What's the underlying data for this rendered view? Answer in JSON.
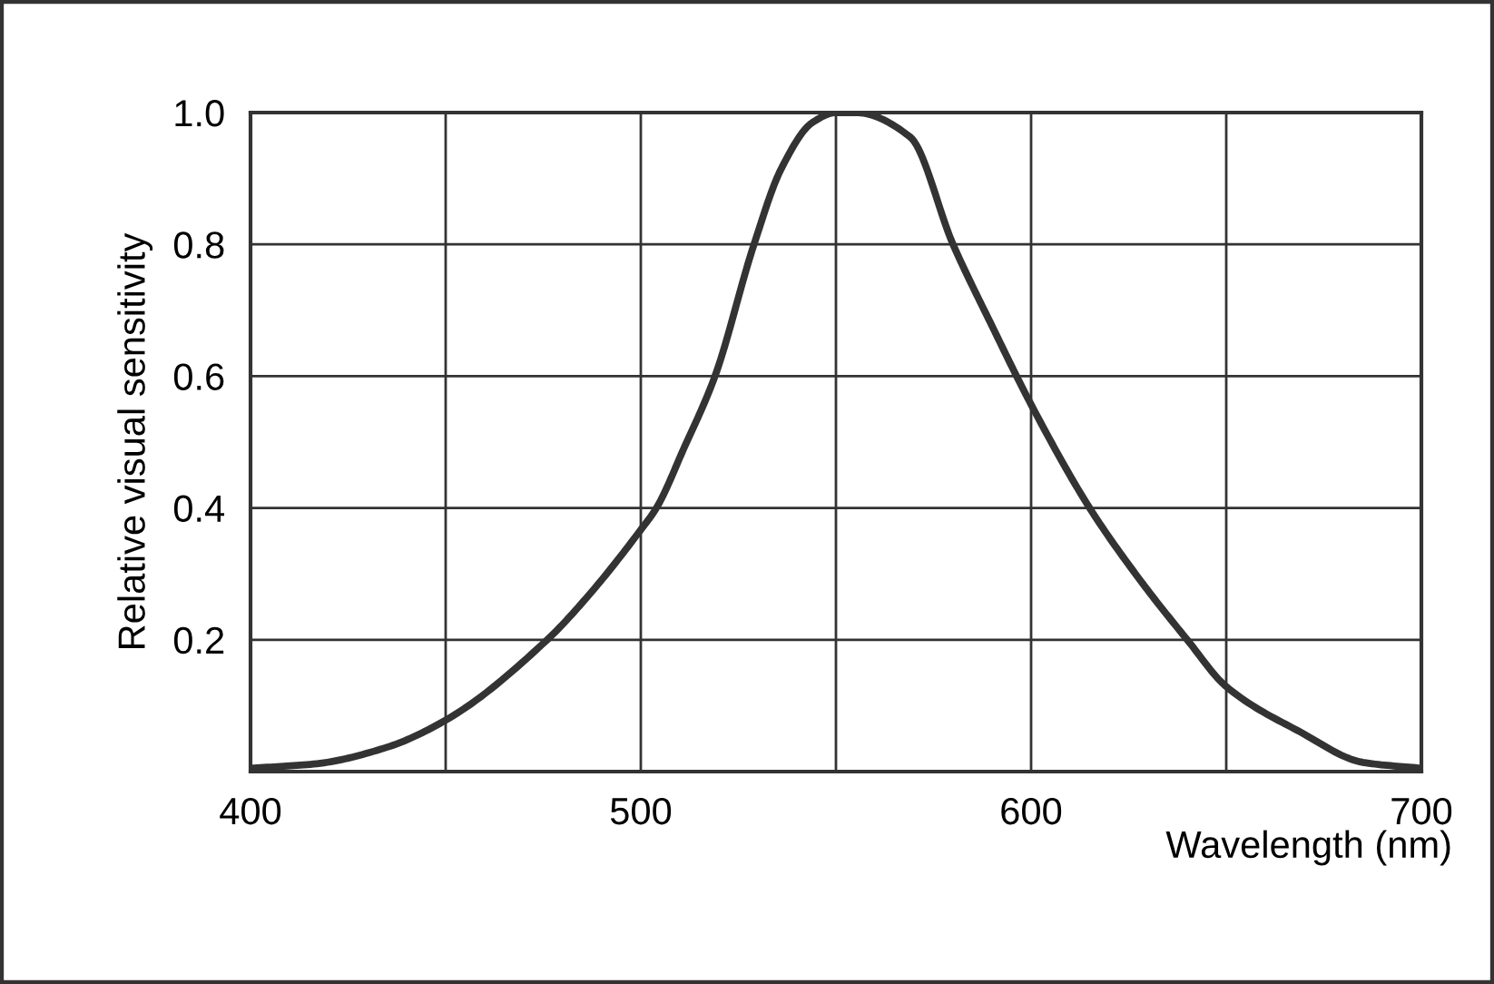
{
  "chart_data": {
    "type": "line",
    "xlabel": "Wavelength (nm)",
    "ylabel": "Relative visual sensitivity",
    "x": [
      400,
      417,
      435,
      450,
      476,
      487,
      500,
      504,
      511,
      519,
      529,
      536,
      544,
      550,
      555,
      569,
      580,
      590,
      600,
      615,
      628,
      640,
      650,
      669,
      685,
      700
    ],
    "series": [
      {
        "color": "#333333",
        "values": [
          0.005,
          0.012,
          0.037,
          0.078,
          0.2,
          0.27,
          0.367,
          0.4,
          0.49,
          0.6,
          0.8,
          0.915,
          0.985,
          1.0,
          1.0,
          0.963,
          0.8,
          0.676,
          0.557,
          0.4,
          0.29,
          0.2,
          0.129,
          0.06,
          0.014,
          0.005
        ]
      }
    ],
    "xlim": [
      400,
      700
    ],
    "ylim": [
      0,
      1.0
    ],
    "xticks": [
      400,
      {
        "value": 450,
        "label": null
      },
      500,
      {
        "value": 550,
        "label": null
      },
      600,
      {
        "value": 650,
        "label": null
      },
      700
    ],
    "yticks": [
      0.2,
      0.4,
      0.6,
      0.8,
      {
        "value": 1.0,
        "label": "1.0"
      }
    ],
    "grid": true,
    "legend": false,
    "marker": "none",
    "line_style": "solid"
  }
}
